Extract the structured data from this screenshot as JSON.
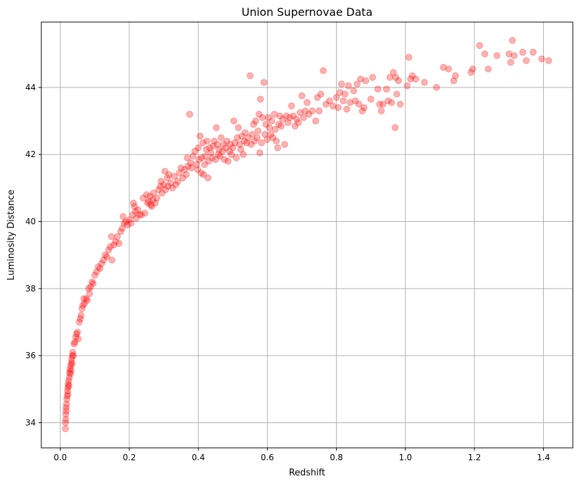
{
  "chart_data": {
    "type": "scatter",
    "title": "Union Supernovae Data",
    "xlabel": "Redshift",
    "ylabel": "Luminosity Distance",
    "xlim": [
      -0.055,
      1.485
    ],
    "ylim": [
      33.25,
      45.95
    ],
    "xticks": [
      0.0,
      0.2,
      0.4,
      0.6,
      0.8,
      1.0,
      1.2,
      1.4
    ],
    "xtick_labels": [
      "0.0",
      "0.2",
      "0.4",
      "0.6",
      "0.8",
      "1.0",
      "1.2",
      "1.4"
    ],
    "yticks": [
      34,
      36,
      38,
      40,
      42,
      44
    ],
    "ytick_labels": [
      "34",
      "36",
      "38",
      "40",
      "42",
      "44"
    ],
    "grid": true,
    "marker_color": "#ff0000",
    "marker_alpha": 0.3,
    "series": [
      {
        "points": [
          [
            0.015,
            33.82
          ],
          [
            0.015,
            34.0
          ],
          [
            0.016,
            34.1
          ],
          [
            0.016,
            34.25
          ],
          [
            0.017,
            34.35
          ],
          [
            0.017,
            34.45
          ],
          [
            0.018,
            34.55
          ],
          [
            0.019,
            34.7
          ],
          [
            0.02,
            34.8
          ],
          [
            0.021,
            34.95
          ],
          [
            0.022,
            35.05
          ],
          [
            0.022,
            34.85
          ],
          [
            0.023,
            35.15
          ],
          [
            0.024,
            35.25
          ],
          [
            0.025,
            35.1
          ],
          [
            0.026,
            35.35
          ],
          [
            0.027,
            35.5
          ],
          [
            0.028,
            35.6
          ],
          [
            0.029,
            35.45
          ],
          [
            0.03,
            35.7
          ],
          [
            0.031,
            35.55
          ],
          [
            0.032,
            35.8
          ],
          [
            0.033,
            35.9
          ],
          [
            0.034,
            35.75
          ],
          [
            0.035,
            36.0
          ],
          [
            0.036,
            36.1
          ],
          [
            0.038,
            36.0
          ],
          [
            0.04,
            36.35
          ],
          [
            0.042,
            36.4
          ],
          [
            0.045,
            36.55
          ],
          [
            0.047,
            36.65
          ],
          [
            0.05,
            36.7
          ],
          [
            0.052,
            36.5
          ],
          [
            0.055,
            37.0
          ],
          [
            0.058,
            37.1
          ],
          [
            0.06,
            37.2
          ],
          [
            0.063,
            37.4
          ],
          [
            0.065,
            37.5
          ],
          [
            0.068,
            37.7
          ],
          [
            0.07,
            37.55
          ],
          [
            0.075,
            37.7
          ],
          [
            0.078,
            37.65
          ],
          [
            0.082,
            38.0
          ],
          [
            0.085,
            37.85
          ],
          [
            0.088,
            38.05
          ],
          [
            0.092,
            38.2
          ],
          [
            0.095,
            38.15
          ],
          [
            0.1,
            38.4
          ],
          [
            0.105,
            38.5
          ],
          [
            0.11,
            38.65
          ],
          [
            0.115,
            38.6
          ],
          [
            0.12,
            38.75
          ],
          [
            0.125,
            38.85
          ],
          [
            0.13,
            39.0
          ],
          [
            0.135,
            38.95
          ],
          [
            0.14,
            39.15
          ],
          [
            0.145,
            39.25
          ],
          [
            0.148,
            39.55
          ],
          [
            0.15,
            38.85
          ],
          [
            0.155,
            39.3
          ],
          [
            0.16,
            39.4
          ],
          [
            0.165,
            39.55
          ],
          [
            0.17,
            39.35
          ],
          [
            0.175,
            39.7
          ],
          [
            0.18,
            39.8
          ],
          [
            0.182,
            40.15
          ],
          [
            0.185,
            39.95
          ],
          [
            0.19,
            40.0
          ],
          [
            0.195,
            39.9
          ],
          [
            0.2,
            40.05
          ],
          [
            0.205,
            39.95
          ],
          [
            0.21,
            40.2
          ],
          [
            0.212,
            40.55
          ],
          [
            0.215,
            40.45
          ],
          [
            0.218,
            40.3
          ],
          [
            0.22,
            40.1
          ],
          [
            0.225,
            40.35
          ],
          [
            0.23,
            40.2
          ],
          [
            0.235,
            40.2
          ],
          [
            0.24,
            40.7
          ],
          [
            0.245,
            40.25
          ],
          [
            0.25,
            40.8
          ],
          [
            0.253,
            40.55
          ],
          [
            0.256,
            40.6
          ],
          [
            0.26,
            40.75
          ],
          [
            0.262,
            40.5
          ],
          [
            0.265,
            40.45
          ],
          [
            0.268,
            40.65
          ],
          [
            0.27,
            40.85
          ],
          [
            0.275,
            40.55
          ],
          [
            0.28,
            40.7
          ],
          [
            0.285,
            40.95
          ],
          [
            0.29,
            41.05
          ],
          [
            0.292,
            41.2
          ],
          [
            0.295,
            40.85
          ],
          [
            0.3,
            41.1
          ],
          [
            0.303,
            41.5
          ],
          [
            0.305,
            40.95
          ],
          [
            0.31,
            41.3
          ],
          [
            0.312,
            41.05
          ],
          [
            0.315,
            41.4
          ],
          [
            0.32,
            41.15
          ],
          [
            0.325,
            41.0
          ],
          [
            0.33,
            41.35
          ],
          [
            0.335,
            41.1
          ],
          [
            0.34,
            41.2
          ],
          [
            0.345,
            41.45
          ],
          [
            0.35,
            41.6
          ],
          [
            0.355,
            41.3
          ],
          [
            0.36,
            41.55
          ],
          [
            0.365,
            41.4
          ],
          [
            0.368,
            41.9
          ],
          [
            0.37,
            41.65
          ],
          [
            0.375,
            43.2
          ],
          [
            0.378,
            41.75
          ],
          [
            0.38,
            41.6
          ],
          [
            0.385,
            41.95
          ],
          [
            0.39,
            42.1
          ],
          [
            0.395,
            41.7
          ],
          [
            0.398,
            41.55
          ],
          [
            0.4,
            42.2
          ],
          [
            0.402,
            41.85
          ],
          [
            0.405,
            42.55
          ],
          [
            0.408,
            41.45
          ],
          [
            0.41,
            41.9
          ],
          [
            0.413,
            42.35
          ],
          [
            0.415,
            41.4
          ],
          [
            0.418,
            41.7
          ],
          [
            0.42,
            41.95
          ],
          [
            0.423,
            42.15
          ],
          [
            0.425,
            42.4
          ],
          [
            0.428,
            41.3
          ],
          [
            0.43,
            41.8
          ],
          [
            0.433,
            42.2
          ],
          [
            0.436,
            42.05
          ],
          [
            0.44,
            41.9
          ],
          [
            0.443,
            42.25
          ],
          [
            0.446,
            42.4
          ],
          [
            0.45,
            41.85
          ],
          [
            0.452,
            42.8
          ],
          [
            0.455,
            42.3
          ],
          [
            0.458,
            42.0
          ],
          [
            0.46,
            42.15
          ],
          [
            0.463,
            41.95
          ],
          [
            0.466,
            42.5
          ],
          [
            0.47,
            42.1
          ],
          [
            0.473,
            42.3
          ],
          [
            0.476,
            41.85
          ],
          [
            0.48,
            42.2
          ],
          [
            0.483,
            42.4
          ],
          [
            0.486,
            41.8
          ],
          [
            0.49,
            42.1
          ],
          [
            0.493,
            42.3
          ],
          [
            0.496,
            42.0
          ],
          [
            0.5,
            42.2
          ],
          [
            0.503,
            43.0
          ],
          [
            0.506,
            42.35
          ],
          [
            0.51,
            41.9
          ],
          [
            0.513,
            42.5
          ],
          [
            0.516,
            42.8
          ],
          [
            0.52,
            42.3
          ],
          [
            0.523,
            42.15
          ],
          [
            0.526,
            42.55
          ],
          [
            0.53,
            42.0
          ],
          [
            0.533,
            42.4
          ],
          [
            0.536,
            42.65
          ],
          [
            0.54,
            42.35
          ],
          [
            0.545,
            42.5
          ],
          [
            0.55,
            44.35
          ],
          [
            0.553,
            42.3
          ],
          [
            0.556,
            42.6
          ],
          [
            0.56,
            42.9
          ],
          [
            0.563,
            42.4
          ],
          [
            0.566,
            43.0
          ],
          [
            0.57,
            42.5
          ],
          [
            0.573,
            42.7
          ],
          [
            0.576,
            43.2
          ],
          [
            0.578,
            42.05
          ],
          [
            0.58,
            43.65
          ],
          [
            0.583,
            42.35
          ],
          [
            0.586,
            43.1
          ],
          [
            0.59,
            44.15
          ],
          [
            0.593,
            42.6
          ],
          [
            0.596,
            42.9
          ],
          [
            0.6,
            42.45
          ],
          [
            0.603,
            43.1
          ],
          [
            0.606,
            42.8
          ],
          [
            0.61,
            42.6
          ],
          [
            0.613,
            43.0
          ],
          [
            0.616,
            42.5
          ],
          [
            0.62,
            43.2
          ],
          [
            0.623,
            42.75
          ],
          [
            0.626,
            42.4
          ],
          [
            0.63,
            42.2
          ],
          [
            0.633,
            42.9
          ],
          [
            0.636,
            43.15
          ],
          [
            0.64,
            42.85
          ],
          [
            0.645,
            43.05
          ],
          [
            0.65,
            42.3
          ],
          [
            0.655,
            43.15
          ],
          [
            0.66,
            42.95
          ],
          [
            0.665,
            43.1
          ],
          [
            0.67,
            43.45
          ],
          [
            0.675,
            43.15
          ],
          [
            0.68,
            42.85
          ],
          [
            0.685,
            43.05
          ],
          [
            0.69,
            42.95
          ],
          [
            0.695,
            43.25
          ],
          [
            0.7,
            43.75
          ],
          [
            0.705,
            43.1
          ],
          [
            0.71,
            43.3
          ],
          [
            0.715,
            43.55
          ],
          [
            0.72,
            43.2
          ],
          [
            0.73,
            43.3
          ],
          [
            0.74,
            43.0
          ],
          [
            0.745,
            43.7
          ],
          [
            0.75,
            43.3
          ],
          [
            0.755,
            43.8
          ],
          [
            0.762,
            44.5
          ],
          [
            0.77,
            43.5
          ],
          [
            0.78,
            43.6
          ],
          [
            0.79,
            43.45
          ],
          [
            0.8,
            43.7
          ],
          [
            0.805,
            43.4
          ],
          [
            0.81,
            43.85
          ],
          [
            0.815,
            44.1
          ],
          [
            0.82,
            43.6
          ],
          [
            0.825,
            43.8
          ],
          [
            0.83,
            43.35
          ],
          [
            0.835,
            44.05
          ],
          [
            0.84,
            43.55
          ],
          [
            0.85,
            43.9
          ],
          [
            0.855,
            43.6
          ],
          [
            0.86,
            44.1
          ],
          [
            0.865,
            43.5
          ],
          [
            0.87,
            44.25
          ],
          [
            0.875,
            43.3
          ],
          [
            0.88,
            43.4
          ],
          [
            0.885,
            44.2
          ],
          [
            0.9,
            43.65
          ],
          [
            0.905,
            44.3
          ],
          [
            0.92,
            43.95
          ],
          [
            0.925,
            43.5
          ],
          [
            0.93,
            43.3
          ],
          [
            0.935,
            43.5
          ],
          [
            0.945,
            43.95
          ],
          [
            0.95,
            43.6
          ],
          [
            0.955,
            44.3
          ],
          [
            0.96,
            43.55
          ],
          [
            0.965,
            44.45
          ],
          [
            0.97,
            42.8
          ],
          [
            0.972,
            44.3
          ],
          [
            0.975,
            43.8
          ],
          [
            0.98,
            44.2
          ],
          [
            0.985,
            43.5
          ],
          [
            1.005,
            44.05
          ],
          [
            1.01,
            44.9
          ],
          [
            1.015,
            44.25
          ],
          [
            1.02,
            44.35
          ],
          [
            1.03,
            44.25
          ],
          [
            1.055,
            44.15
          ],
          [
            1.09,
            44.0
          ],
          [
            1.11,
            44.6
          ],
          [
            1.125,
            44.55
          ],
          [
            1.14,
            44.2
          ],
          [
            1.145,
            44.35
          ],
          [
            1.19,
            44.45
          ],
          [
            1.195,
            44.55
          ],
          [
            1.215,
            45.25
          ],
          [
            1.23,
            45.0
          ],
          [
            1.24,
            44.55
          ],
          [
            1.265,
            44.95
          ],
          [
            1.3,
            45.0
          ],
          [
            1.305,
            44.75
          ],
          [
            1.31,
            45.4
          ],
          [
            1.315,
            44.95
          ],
          [
            1.34,
            45.05
          ],
          [
            1.35,
            44.8
          ],
          [
            1.37,
            45.05
          ],
          [
            1.395,
            44.85
          ],
          [
            1.415,
            44.8
          ]
        ]
      }
    ]
  }
}
